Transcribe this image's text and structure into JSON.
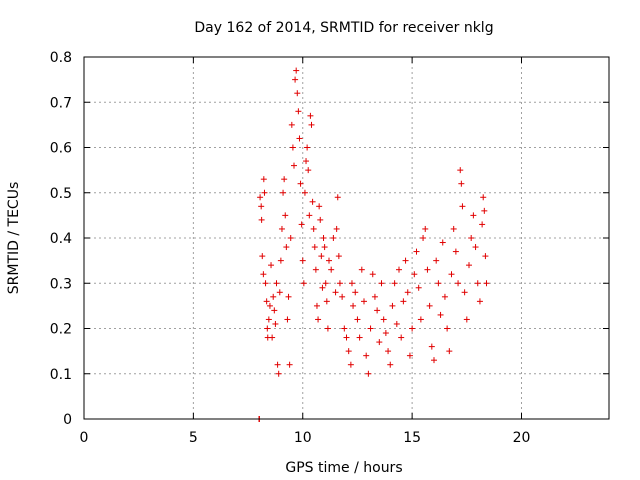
{
  "chart_data": {
    "type": "scatter",
    "title": "Day 162 of 2014, SRMTID for receiver nklg",
    "xlabel": "GPS time / hours",
    "ylabel": "SRMTID / TECUs",
    "xlim": [
      0,
      24
    ],
    "ylim": [
      0,
      0.8
    ],
    "xticks": [
      0,
      5,
      10,
      15,
      20
    ],
    "xtick_labels": [
      "0",
      "5",
      "10",
      "15",
      "20"
    ],
    "yticks": [
      0,
      0.1,
      0.2,
      0.3,
      0.4,
      0.5,
      0.6,
      0.7,
      0.8
    ],
    "ytick_labels": [
      "0",
      "0.1",
      "0.2",
      "0.3",
      "0.4",
      "0.5",
      "0.6",
      "0.7",
      "0.8"
    ],
    "grid": true,
    "marker": "+",
    "marker_color": "#e00000",
    "series": [
      {
        "name": "SRMTID",
        "points": [
          [
            8.0,
            0.0
          ],
          [
            8.02,
            0.0
          ],
          [
            8.05,
            0.49
          ],
          [
            8.1,
            0.47
          ],
          [
            8.12,
            0.44
          ],
          [
            8.15,
            0.36
          ],
          [
            8.2,
            0.32
          ],
          [
            8.22,
            0.53
          ],
          [
            8.25,
            0.5
          ],
          [
            8.3,
            0.3
          ],
          [
            8.35,
            0.26
          ],
          [
            8.38,
            0.2
          ],
          [
            8.4,
            0.18
          ],
          [
            8.45,
            0.22
          ],
          [
            8.5,
            0.25
          ],
          [
            8.55,
            0.34
          ],
          [
            8.6,
            0.18
          ],
          [
            8.65,
            0.27
          ],
          [
            8.7,
            0.24
          ],
          [
            8.75,
            0.21
          ],
          [
            8.8,
            0.3
          ],
          [
            8.85,
            0.12
          ],
          [
            8.9,
            0.1
          ],
          [
            8.95,
            0.28
          ],
          [
            9.0,
            0.35
          ],
          [
            9.05,
            0.42
          ],
          [
            9.1,
            0.5
          ],
          [
            9.15,
            0.53
          ],
          [
            9.2,
            0.45
          ],
          [
            9.25,
            0.38
          ],
          [
            9.3,
            0.22
          ],
          [
            9.35,
            0.27
          ],
          [
            9.4,
            0.12
          ],
          [
            9.45,
            0.4
          ],
          [
            9.5,
            0.65
          ],
          [
            9.55,
            0.6
          ],
          [
            9.6,
            0.56
          ],
          [
            9.65,
            0.75
          ],
          [
            9.7,
            0.77
          ],
          [
            9.75,
            0.72
          ],
          [
            9.8,
            0.68
          ],
          [
            9.85,
            0.62
          ],
          [
            9.9,
            0.52
          ],
          [
            9.95,
            0.43
          ],
          [
            10.0,
            0.35
          ],
          [
            10.05,
            0.3
          ],
          [
            10.1,
            0.5
          ],
          [
            10.15,
            0.57
          ],
          [
            10.2,
            0.6
          ],
          [
            10.25,
            0.55
          ],
          [
            10.3,
            0.45
          ],
          [
            10.35,
            0.67
          ],
          [
            10.4,
            0.65
          ],
          [
            10.45,
            0.48
          ],
          [
            10.5,
            0.42
          ],
          [
            10.55,
            0.38
          ],
          [
            10.6,
            0.33
          ],
          [
            10.65,
            0.25
          ],
          [
            10.7,
            0.22
          ],
          [
            10.75,
            0.47
          ],
          [
            10.8,
            0.44
          ],
          [
            10.85,
            0.36
          ],
          [
            10.9,
            0.29
          ],
          [
            10.95,
            0.4
          ],
          [
            11.0,
            0.38
          ],
          [
            11.05,
            0.3
          ],
          [
            11.1,
            0.26
          ],
          [
            11.15,
            0.2
          ],
          [
            11.2,
            0.35
          ],
          [
            11.3,
            0.33
          ],
          [
            11.4,
            0.4
          ],
          [
            11.5,
            0.28
          ],
          [
            11.55,
            0.42
          ],
          [
            11.6,
            0.49
          ],
          [
            11.65,
            0.36
          ],
          [
            11.7,
            0.3
          ],
          [
            11.8,
            0.27
          ],
          [
            11.9,
            0.2
          ],
          [
            12.0,
            0.18
          ],
          [
            12.1,
            0.15
          ],
          [
            12.2,
            0.12
          ],
          [
            12.25,
            0.3
          ],
          [
            12.3,
            0.25
          ],
          [
            12.4,
            0.28
          ],
          [
            12.5,
            0.22
          ],
          [
            12.6,
            0.18
          ],
          [
            12.7,
            0.33
          ],
          [
            12.8,
            0.26
          ],
          [
            12.9,
            0.14
          ],
          [
            13.0,
            0.1
          ],
          [
            13.1,
            0.2
          ],
          [
            13.2,
            0.32
          ],
          [
            13.3,
            0.27
          ],
          [
            13.4,
            0.24
          ],
          [
            13.5,
            0.17
          ],
          [
            13.6,
            0.3
          ],
          [
            13.7,
            0.22
          ],
          [
            13.8,
            0.19
          ],
          [
            13.9,
            0.15
          ],
          [
            14.0,
            0.12
          ],
          [
            14.1,
            0.25
          ],
          [
            14.2,
            0.3
          ],
          [
            14.3,
            0.21
          ],
          [
            14.4,
            0.33
          ],
          [
            14.5,
            0.18
          ],
          [
            14.6,
            0.26
          ],
          [
            14.7,
            0.35
          ],
          [
            14.8,
            0.28
          ],
          [
            14.9,
            0.14
          ],
          [
            15.0,
            0.2
          ],
          [
            15.1,
            0.32
          ],
          [
            15.2,
            0.37
          ],
          [
            15.3,
            0.29
          ],
          [
            15.4,
            0.22
          ],
          [
            15.5,
            0.4
          ],
          [
            15.6,
            0.42
          ],
          [
            15.7,
            0.33
          ],
          [
            15.8,
            0.25
          ],
          [
            15.9,
            0.16
          ],
          [
            16.0,
            0.13
          ],
          [
            16.1,
            0.35
          ],
          [
            16.2,
            0.3
          ],
          [
            16.3,
            0.23
          ],
          [
            16.4,
            0.39
          ],
          [
            16.5,
            0.27
          ],
          [
            16.6,
            0.2
          ],
          [
            16.7,
            0.15
          ],
          [
            16.8,
            0.32
          ],
          [
            16.9,
            0.42
          ],
          [
            17.0,
            0.37
          ],
          [
            17.1,
            0.3
          ],
          [
            17.2,
            0.55
          ],
          [
            17.25,
            0.52
          ],
          [
            17.3,
            0.47
          ],
          [
            17.4,
            0.28
          ],
          [
            17.5,
            0.22
          ],
          [
            17.6,
            0.34
          ],
          [
            17.7,
            0.4
          ],
          [
            17.8,
            0.45
          ],
          [
            17.9,
            0.38
          ],
          [
            18.0,
            0.3
          ],
          [
            18.1,
            0.26
          ],
          [
            18.2,
            0.43
          ],
          [
            18.25,
            0.49
          ],
          [
            18.3,
            0.46
          ],
          [
            18.35,
            0.36
          ],
          [
            18.4,
            0.3
          ]
        ]
      }
    ]
  }
}
